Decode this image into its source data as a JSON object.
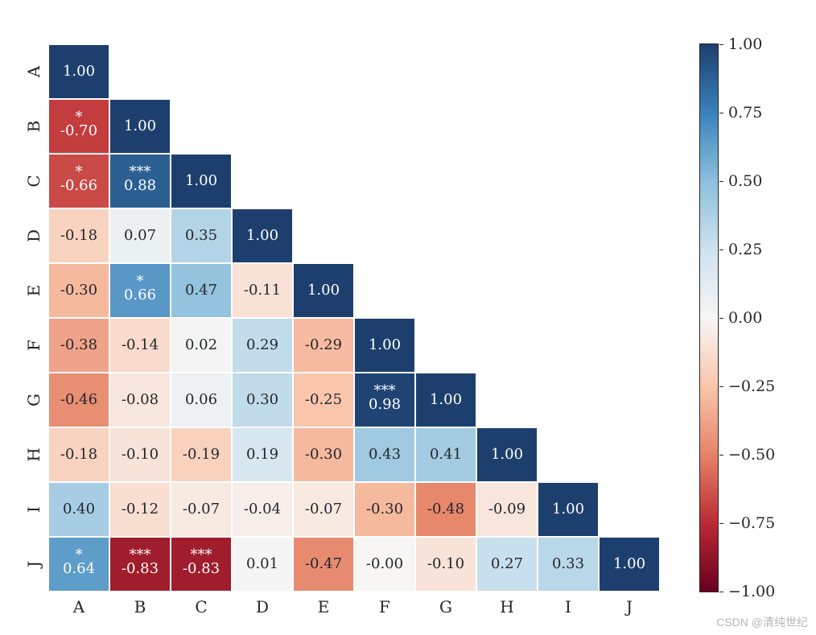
{
  "chart": {
    "type": "heatmap",
    "labels": [
      "A",
      "B",
      "C",
      "D",
      "E",
      "F",
      "G",
      "H",
      "I",
      "J"
    ],
    "n": 10,
    "cell_fontsize": 18,
    "label_fontsize": 20,
    "cbar_fontsize": 19,
    "background_color": "#ffffff",
    "cell_border_color": "#ffffff",
    "cmap_stops": [
      {
        "v": -1.0,
        "color": "#67001f"
      },
      {
        "v": -0.75,
        "color": "#bb2a34"
      },
      {
        "v": -0.5,
        "color": "#e58368"
      },
      {
        "v": -0.25,
        "color": "#f9c6ac"
      },
      {
        "v": 0.0,
        "color": "#f7f6f5"
      },
      {
        "v": 0.25,
        "color": "#cde2ee"
      },
      {
        "v": 0.5,
        "color": "#8cbfdc"
      },
      {
        "v": 0.75,
        "color": "#3a81ba"
      },
      {
        "v": 1.0,
        "color": "#1d3f6e"
      }
    ],
    "vmin": -1.0,
    "vmax": 1.0,
    "cbar_ticks": [
      1.0,
      0.75,
      0.5,
      0.25,
      0.0,
      -0.25,
      -0.5,
      -0.75,
      -1.0
    ],
    "matrix": [
      [
        1.0,
        null,
        null,
        null,
        null,
        null,
        null,
        null,
        null,
        null
      ],
      [
        -0.7,
        1.0,
        null,
        null,
        null,
        null,
        null,
        null,
        null,
        null
      ],
      [
        -0.66,
        0.88,
        1.0,
        null,
        null,
        null,
        null,
        null,
        null,
        null
      ],
      [
        -0.18,
        0.07,
        0.35,
        1.0,
        null,
        null,
        null,
        null,
        null,
        null
      ],
      [
        -0.3,
        0.66,
        0.47,
        -0.11,
        1.0,
        null,
        null,
        null,
        null,
        null
      ],
      [
        -0.38,
        -0.14,
        0.02,
        0.29,
        -0.29,
        1.0,
        null,
        null,
        null,
        null
      ],
      [
        -0.46,
        -0.08,
        0.06,
        0.3,
        -0.25,
        0.98,
        1.0,
        null,
        null,
        null
      ],
      [
        -0.18,
        -0.1,
        -0.19,
        0.19,
        -0.3,
        0.43,
        0.41,
        1.0,
        null,
        null
      ],
      [
        0.4,
        -0.12,
        -0.07,
        -0.04,
        -0.07,
        -0.3,
        -0.48,
        -0.09,
        1.0,
        null
      ],
      [
        0.64,
        -0.83,
        -0.83,
        0.01,
        -0.47,
        -0.0,
        -0.1,
        0.27,
        0.33,
        1.0
      ]
    ],
    "sig": [
      [
        "",
        "",
        "",
        "",
        "",
        "",
        "",
        "",
        "",
        ""
      ],
      [
        "*",
        "",
        "",
        "",
        "",
        "",
        "",
        "",
        "",
        ""
      ],
      [
        "*",
        "***",
        "",
        "",
        "",
        "",
        "",
        "",
        "",
        ""
      ],
      [
        "",
        "",
        "",
        "",
        "",
        "",
        "",
        "",
        "",
        ""
      ],
      [
        "",
        "*",
        "",
        "",
        "",
        "",
        "",
        "",
        "",
        ""
      ],
      [
        "",
        "",
        "",
        "",
        "",
        "",
        "",
        "",
        "",
        ""
      ],
      [
        "",
        "",
        "",
        "",
        "",
        "***",
        "",
        "",
        "",
        ""
      ],
      [
        "",
        "",
        "",
        "",
        "",
        "",
        "",
        "",
        "",
        ""
      ],
      [
        "",
        "",
        "",
        "",
        "",
        "",
        "",
        "",
        "",
        ""
      ],
      [
        "*",
        "***",
        "***",
        "",
        "",
        "",
        "",
        "",
        "",
        ""
      ]
    ],
    "text_white_threshold_abs": 0.55
  },
  "watermark": "CSDN @清纯世纪"
}
